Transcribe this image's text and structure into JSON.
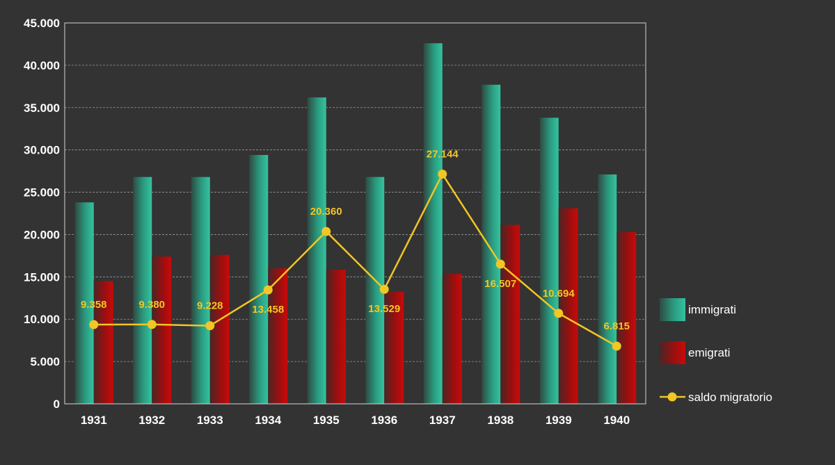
{
  "chart_data": {
    "type": "bar",
    "categories": [
      "1931",
      "1932",
      "1933",
      "1934",
      "1935",
      "1936",
      "1937",
      "1938",
      "1939",
      "1940"
    ],
    "y_ticks": [
      "0",
      "5.000",
      "10.000",
      "15.000",
      "20.000",
      "25.000",
      "30.000",
      "35.000",
      "40.000",
      "45.000"
    ],
    "ylim": [
      0,
      45000
    ],
    "grid": true,
    "legend_position": "right",
    "series": [
      {
        "name": "immigrati",
        "type": "bar",
        "color": "#2aa98a",
        "values": [
          23800,
          26800,
          26800,
          29400,
          36200,
          26800,
          42600,
          37700,
          33800,
          27100
        ]
      },
      {
        "name": "emigrati",
        "type": "bar",
        "color": "#b00d0d",
        "values": [
          14500,
          17400,
          17600,
          16000,
          15850,
          13250,
          15350,
          21150,
          23100,
          20300
        ]
      },
      {
        "name": "saldo migratorio",
        "type": "line",
        "color": "#f2c624",
        "values": [
          9358,
          9380,
          9228,
          13458,
          20360,
          13529,
          27144,
          16507,
          10694,
          6815
        ],
        "labels": [
          "9.358",
          "9.380",
          "9.228",
          "13.458",
          "20.360",
          "13.529",
          "27.144",
          "16.507",
          "10.694",
          "6.815"
        ]
      }
    ]
  }
}
